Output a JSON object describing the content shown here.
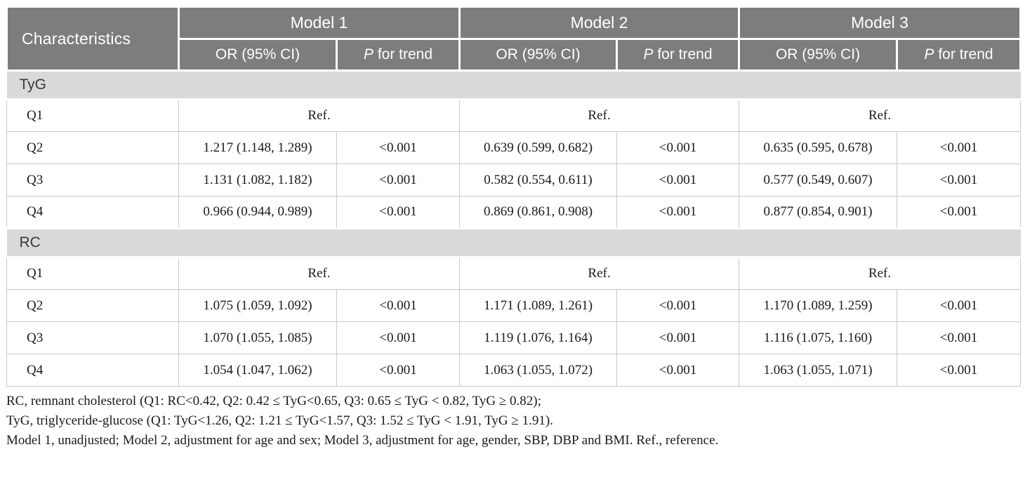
{
  "colors": {
    "header_bg": "#7d7d7d",
    "header_text": "#ffffff",
    "section_bg": "#d9d9d9",
    "body_border": "#c9c9c9",
    "text": "#1a1a1a",
    "section_text": "#3a3a3a"
  },
  "table": {
    "characteristics_header": "Characteristics",
    "models": [
      "Model 1",
      "Model 2",
      "Model 3"
    ],
    "subheaders": {
      "or": "OR (95% CI)",
      "p_italic": "P",
      "p_rest": " for trend"
    },
    "sections": [
      {
        "name": "TyG",
        "q1": {
          "label": "Q1",
          "ref": "Ref."
        },
        "rows": [
          {
            "label": "Q2",
            "cells": [
              "1.217 (1.148, 1.289)",
              "<0.001",
              "0.639 (0.599, 0.682)",
              "<0.001",
              "0.635 (0.595, 0.678)",
              "<0.001"
            ]
          },
          {
            "label": "Q3",
            "cells": [
              "1.131 (1.082, 1.182)",
              "<0.001",
              "0.582 (0.554, 0.611)",
              "<0.001",
              "0.577 (0.549, 0.607)",
              "<0.001"
            ]
          },
          {
            "label": "Q4",
            "cells": [
              "0.966 (0.944, 0.989)",
              "<0.001",
              "0.869 (0.861, 0.908)",
              "<0.001",
              "0.877 (0.854, 0.901)",
              "<0.001"
            ]
          }
        ]
      },
      {
        "name": "RC",
        "q1": {
          "label": "Q1",
          "ref": "Ref."
        },
        "rows": [
          {
            "label": "Q2",
            "cells": [
              "1.075 (1.059, 1.092)",
              "<0.001",
              "1.171 (1.089, 1.261)",
              "<0.001",
              "1.170 (1.089, 1.259)",
              "<0.001"
            ]
          },
          {
            "label": "Q3",
            "cells": [
              "1.070 (1.055, 1.085)",
              "<0.001",
              "1.119 (1.076, 1.164)",
              "<0.001",
              "1.116 (1.075, 1.160)",
              "<0.001"
            ]
          },
          {
            "label": "Q4",
            "cells": [
              "1.054 (1.047, 1.062)",
              "<0.001",
              "1.063 (1.055, 1.072)",
              "<0.001",
              "1.063 (1.055, 1.071)",
              "<0.001"
            ]
          }
        ]
      }
    ]
  },
  "footnotes": [
    "RC, remnant cholesterol (Q1: RC<0.42, Q2: 0.42 ≤ TyG<0.65, Q3: 0.65 ≤ TyG < 0.82, TyG ≥ 0.82);",
    "TyG, triglyceride-glucose (Q1: TyG<1.26, Q2: 1.21 ≤ TyG<1.57, Q3: 1.52 ≤ TyG < 1.91, TyG ≥ 1.91).",
    "Model 1, unadjusted; Model 2, adjustment for age and sex; Model 3, adjustment for age, gender, SBP, DBP and BMI. Ref., reference."
  ]
}
